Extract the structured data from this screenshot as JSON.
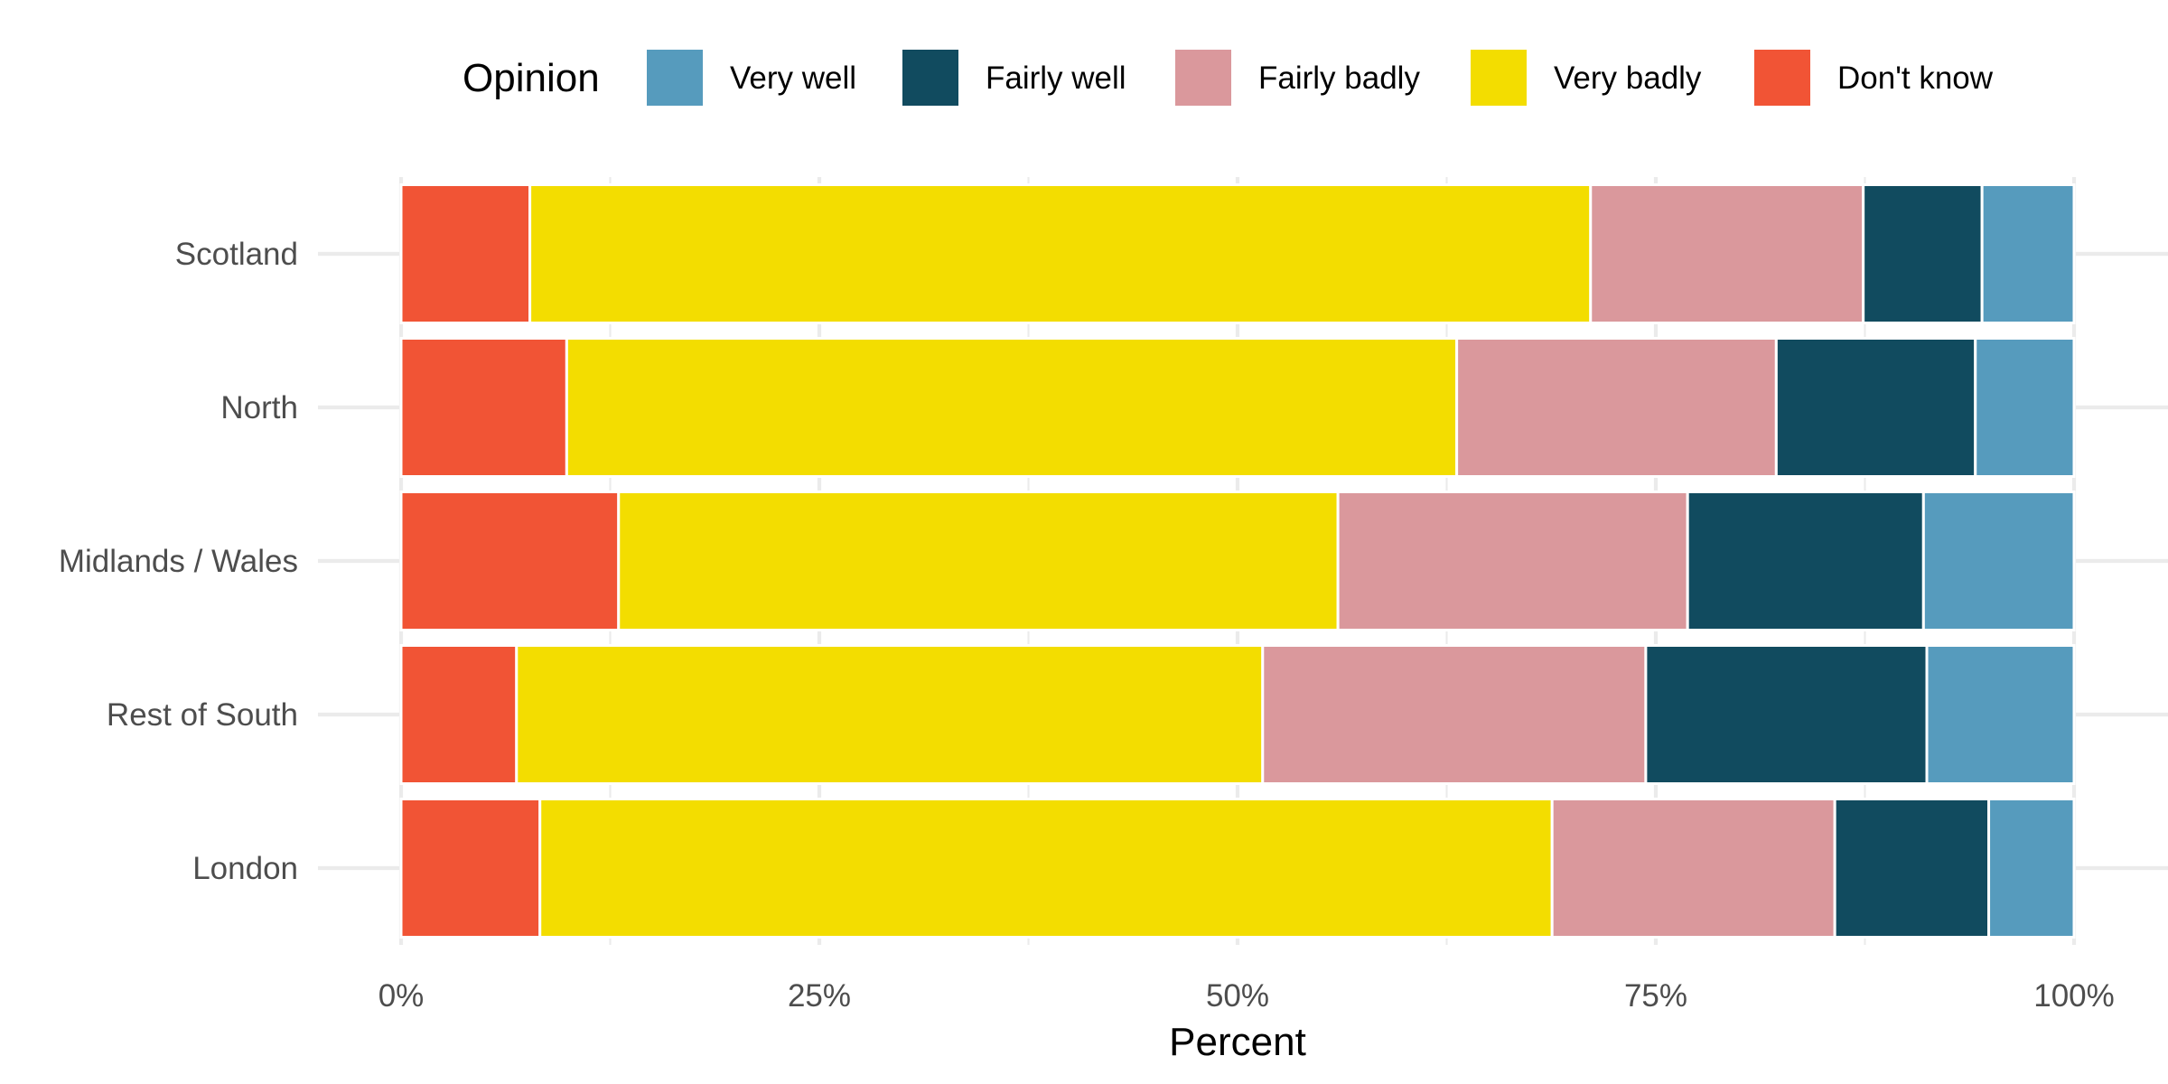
{
  "chart_data": {
    "type": "bar",
    "orientation": "horizontal",
    "stacked": true,
    "xlabel": "Percent",
    "ylabel": "",
    "xlim": [
      0,
      1
    ],
    "x_ticks": [
      {
        "value": 0,
        "label": "0%"
      },
      {
        "value": 0.25,
        "label": "25%"
      },
      {
        "value": 0.5,
        "label": "50%"
      },
      {
        "value": 0.75,
        "label": "75%"
      },
      {
        "value": 1,
        "label": "100%"
      }
    ],
    "x_minor_ticks": [
      0.125,
      0.375,
      0.625,
      0.875
    ],
    "categories": [
      "Scotland",
      "North",
      "Midlands / Wales",
      "Rest of South",
      "London"
    ],
    "legend": {
      "title": "Opinion",
      "position": "top",
      "order": [
        "Very well",
        "Fairly well",
        "Fairly badly",
        "Very badly",
        "Don't know"
      ]
    },
    "stack_order_left_to_right": [
      "Don't know",
      "Very badly",
      "Fairly badly",
      "Fairly well",
      "Very well"
    ],
    "series": [
      {
        "name": "Very well",
        "color": "#569BBD",
        "values": [
          0.055,
          0.059,
          0.09,
          0.088,
          0.051
        ]
      },
      {
        "name": "Fairly well",
        "color": "#114B5F",
        "values": [
          0.071,
          0.119,
          0.141,
          0.168,
          0.092
        ]
      },
      {
        "name": "Fairly badly",
        "color": "#DA989C",
        "values": [
          0.163,
          0.191,
          0.209,
          0.229,
          0.169
        ]
      },
      {
        "name": "Very badly",
        "color": "#F3DD00",
        "values": [
          0.634,
          0.532,
          0.43,
          0.446,
          0.605
        ]
      },
      {
        "name": "Don't know",
        "color": "#F15435",
        "values": [
          0.077,
          0.099,
          0.13,
          0.069,
          0.083
        ]
      }
    ],
    "grid": true
  }
}
